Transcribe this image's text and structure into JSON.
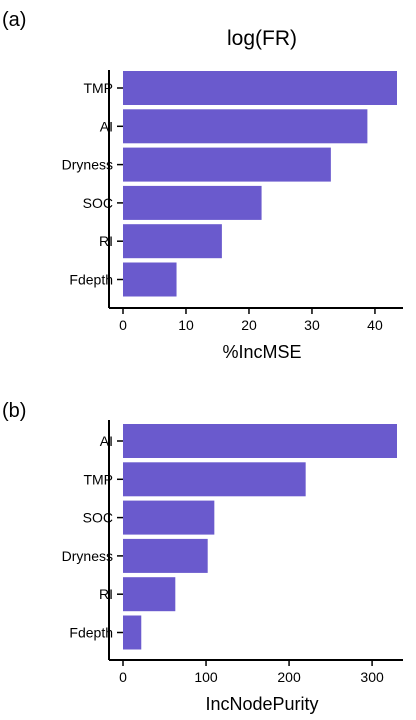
{
  "chart_data": [
    {
      "type": "bar",
      "orientation": "horizontal",
      "panel_label": "(a)",
      "title": "log(FR)",
      "categories": [
        "TMP",
        "AI",
        "Dryness",
        "SOC",
        "RI",
        "Fdepth"
      ],
      "values": [
        43.5,
        38.8,
        33.0,
        22.0,
        15.7,
        8.5
      ],
      "xlabel": "%IncMSE",
      "ylabel": "",
      "xlim": [
        0,
        43.5
      ],
      "xticks": [
        0,
        10,
        20,
        30,
        40
      ],
      "grid": false,
      "bar_color": "#6a5acd"
    },
    {
      "type": "bar",
      "orientation": "horizontal",
      "panel_label": "(b)",
      "title": "",
      "categories": [
        "AI",
        "TMP",
        "SOC",
        "Dryness",
        "RI",
        "Fdepth"
      ],
      "values": [
        330,
        220,
        110,
        102,
        63,
        22
      ],
      "xlabel": "IncNodePurity",
      "ylabel": "",
      "xlim": [
        0,
        330
      ],
      "xticks": [
        0,
        100,
        200,
        300
      ],
      "grid": false,
      "bar_color": "#6a5acd"
    }
  ]
}
